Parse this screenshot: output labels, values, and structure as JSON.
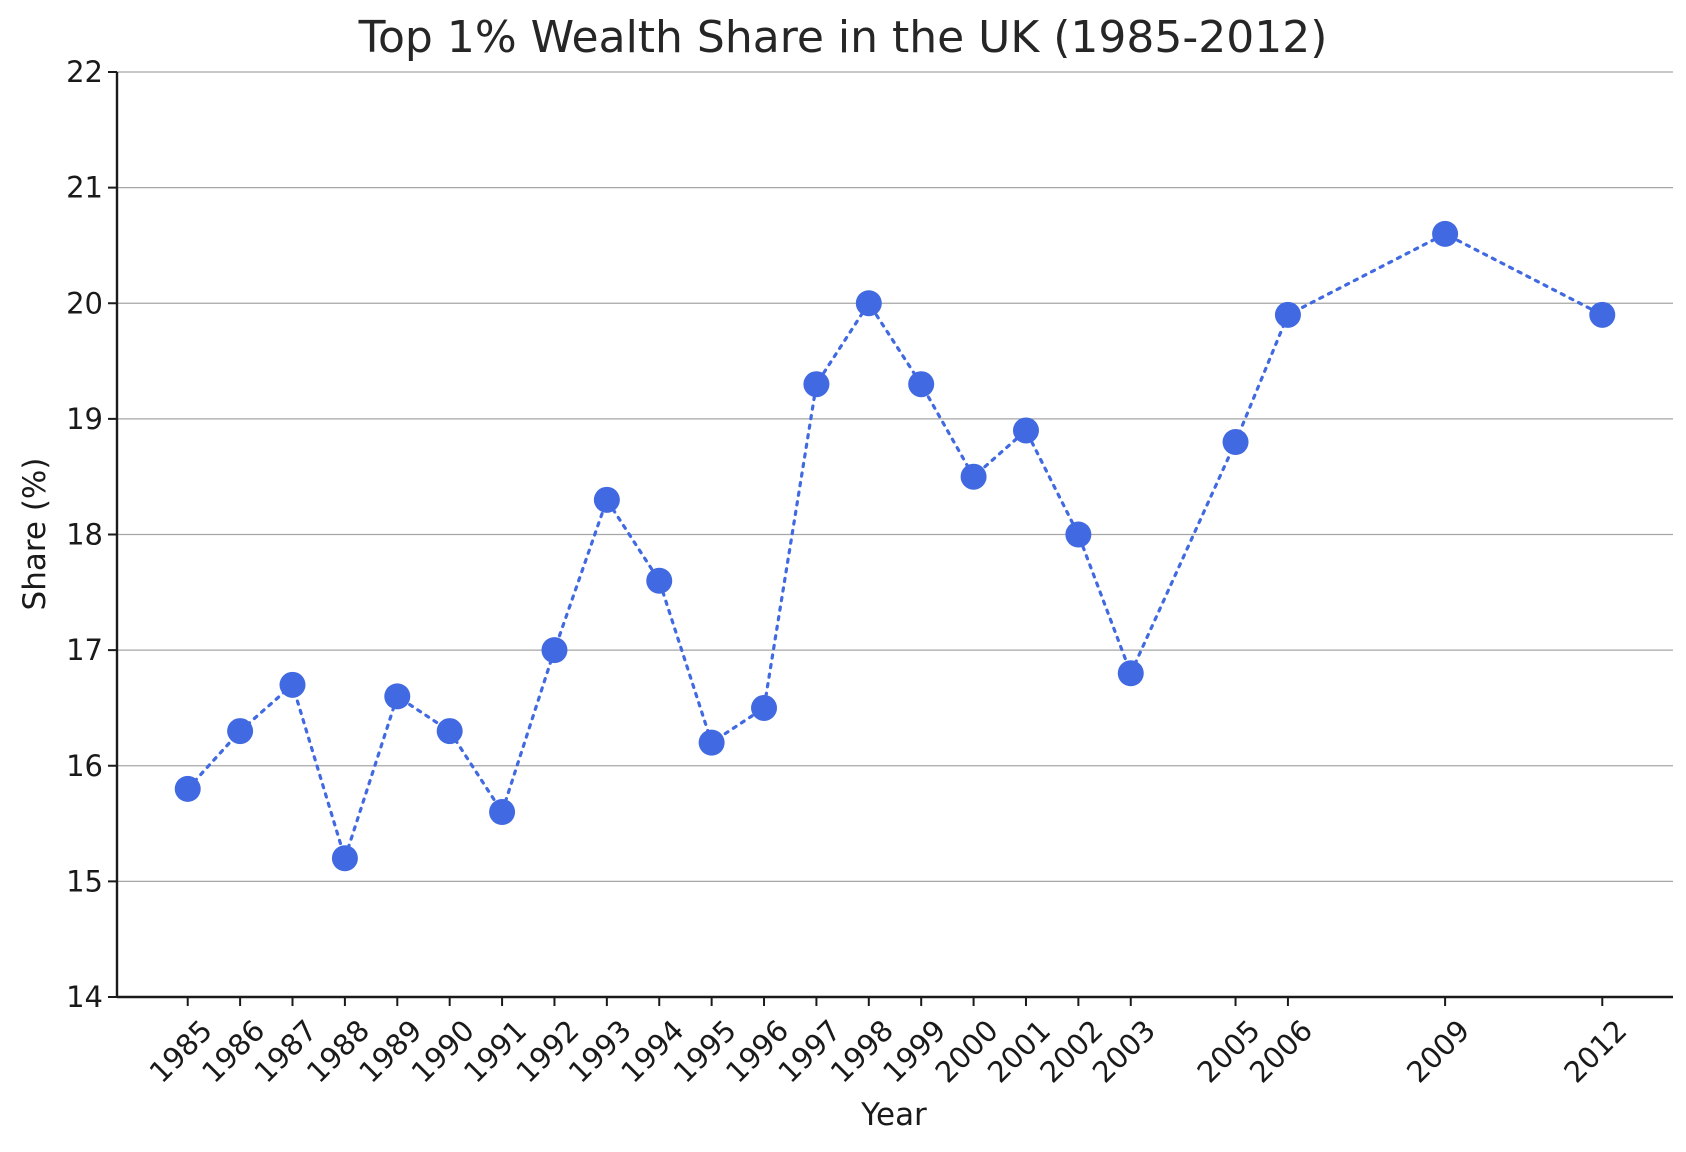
{
  "chart_data": {
    "type": "line",
    "title": "Top 1% Wealth Share in the UK (1985-2012)",
    "xlabel": "Year",
    "ylabel": "Share (%)",
    "x": [
      1985,
      1986,
      1987,
      1988,
      1989,
      1990,
      1991,
      1992,
      1993,
      1994,
      1995,
      1996,
      1997,
      1998,
      1999,
      2000,
      2001,
      2002,
      2003,
      2005,
      2006,
      2009,
      2012
    ],
    "series": [
      {
        "values": [
          15.8,
          16.3,
          16.7,
          15.2,
          16.6,
          16.3,
          15.6,
          17.0,
          18.3,
          17.6,
          16.2,
          16.5,
          19.3,
          20.0,
          19.3,
          18.5,
          18.9,
          18.0,
          16.8,
          18.8,
          19.9,
          20.6,
          19.9
        ],
        "color": "#4169e1",
        "line_style": "dotted",
        "marker": "circle"
      }
    ],
    "xticks": [
      1985,
      1986,
      1987,
      1988,
      1989,
      1990,
      1991,
      1992,
      1993,
      1994,
      1995,
      1996,
      1997,
      1998,
      1999,
      2000,
      2001,
      2002,
      2003,
      2005,
      2006,
      2009,
      2012
    ],
    "yticks": [
      14,
      15,
      16,
      17,
      18,
      19,
      20,
      21,
      22
    ],
    "xlim": [
      1983.65,
      2013.35
    ],
    "ylim": [
      14,
      22
    ],
    "grid": "horizontal",
    "xtick_rotation": 45
  }
}
